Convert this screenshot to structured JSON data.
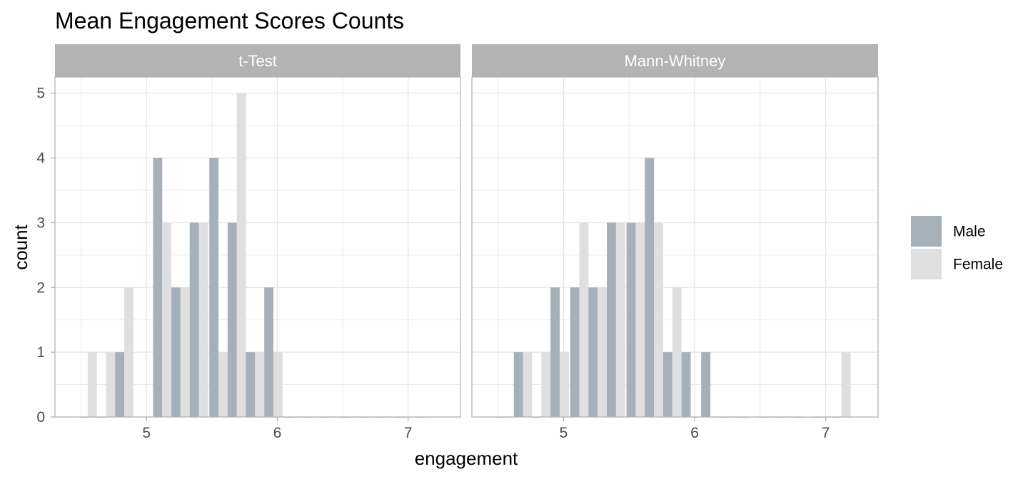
{
  "chart_data": {
    "type": "bar",
    "title": "Mean Engagement Scores Counts",
    "xlabel": "engagement",
    "ylabel": "count",
    "xlim": [
      4.3,
      7.4
    ],
    "ylim": [
      0,
      5.25
    ],
    "x_ticks": [
      5,
      6,
      7
    ],
    "y_ticks": [
      0,
      1,
      2,
      3,
      4,
      5
    ],
    "grid": true,
    "legend_position": "right",
    "bin_width": 0.07,
    "series": [
      {
        "key": "male",
        "name": "Male",
        "color": "#a6b0b8"
      },
      {
        "key": "female",
        "name": "Female",
        "color": "#e0dfe0"
      }
    ],
    "panels": [
      {
        "strip": "t-Test",
        "bins": [
          {
            "x": 4.55,
            "male": 0,
            "female": 1
          },
          {
            "x": 4.69,
            "male": 0,
            "female": 1
          },
          {
            "x": 4.83,
            "male": 1,
            "female": 2
          },
          {
            "x": 5.12,
            "male": 4,
            "female": 3
          },
          {
            "x": 5.26,
            "male": 2,
            "female": 2
          },
          {
            "x": 5.4,
            "male": 3,
            "female": 3
          },
          {
            "x": 5.55,
            "male": 4,
            "female": 1
          },
          {
            "x": 5.69,
            "male": 3,
            "female": 5
          },
          {
            "x": 5.83,
            "male": 1,
            "female": 1
          },
          {
            "x": 5.97,
            "male": 2,
            "female": 1
          },
          {
            "x": 6.12,
            "male": 0,
            "female": 0
          },
          {
            "x": 6.26,
            "male": 0,
            "female": 0
          },
          {
            "x": 6.4,
            "male": 0,
            "female": 0
          },
          {
            "x": 6.55,
            "male": 0,
            "female": 0
          },
          {
            "x": 6.69,
            "male": 0,
            "female": 0
          },
          {
            "x": 6.83,
            "male": 0,
            "female": 0
          },
          {
            "x": 6.97,
            "male": 0,
            "female": 0
          },
          {
            "x": 7.12,
            "male": 0,
            "female": 0
          }
        ]
      },
      {
        "strip": "Mann-Whitney",
        "bins": [
          {
            "x": 4.55,
            "male": 0,
            "female": 0
          },
          {
            "x": 4.69,
            "male": 1,
            "female": 1
          },
          {
            "x": 4.83,
            "male": 0,
            "female": 1
          },
          {
            "x": 4.97,
            "male": 2,
            "female": 1
          },
          {
            "x": 5.12,
            "male": 2,
            "female": 3
          },
          {
            "x": 5.26,
            "male": 2,
            "female": 2
          },
          {
            "x": 5.4,
            "male": 3,
            "female": 3
          },
          {
            "x": 5.55,
            "male": 3,
            "female": 3
          },
          {
            "x": 5.69,
            "male": 4,
            "female": 3
          },
          {
            "x": 5.83,
            "male": 1,
            "female": 2
          },
          {
            "x": 5.97,
            "male": 1,
            "female": 0
          },
          {
            "x": 6.12,
            "male": 1,
            "female": 0
          },
          {
            "x": 6.26,
            "male": 0,
            "female": 0
          },
          {
            "x": 6.4,
            "male": 0,
            "female": 0
          },
          {
            "x": 6.55,
            "male": 0,
            "female": 0
          },
          {
            "x": 6.69,
            "male": 0,
            "female": 0
          },
          {
            "x": 6.83,
            "male": 0,
            "female": 0
          },
          {
            "x": 6.97,
            "male": 0,
            "female": 0
          },
          {
            "x": 7.12,
            "male": 0,
            "female": 1
          }
        ]
      }
    ]
  }
}
